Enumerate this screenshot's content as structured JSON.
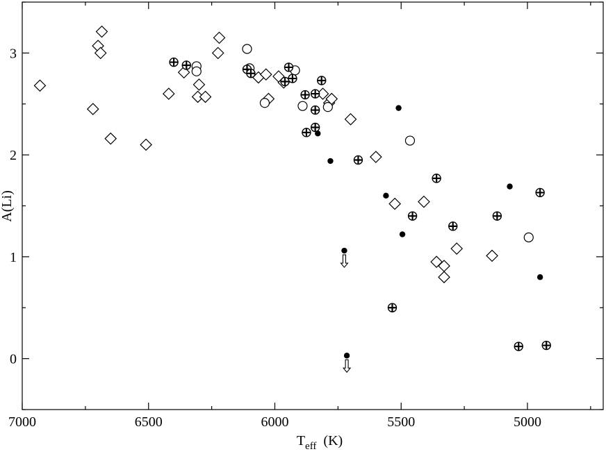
{
  "chart_data": {
    "type": "scatter",
    "title": "",
    "xlabel": "T",
    "xlabel_sub": "eff",
    "xlabel_units": "(K)",
    "ylabel": "A(Li)",
    "xlim": [
      7000,
      4700
    ],
    "ylim": [
      -0.5,
      3.5
    ],
    "x_reversed": true,
    "grid": false,
    "legend": "none",
    "x_ticks": [
      7000,
      6500,
      6000,
      5500,
      5000
    ],
    "y_ticks": [
      0,
      1,
      2,
      3
    ],
    "colors": {
      "marker": "#000000",
      "fill_open": "#ffffff"
    },
    "series": [
      {
        "marker": "diamond-open",
        "points": [
          [
            6930,
            2.68
          ],
          [
            6720,
            2.45
          ],
          [
            6700,
            3.07
          ],
          [
            6690,
            3.0
          ],
          [
            6685,
            3.21
          ],
          [
            6650,
            2.16
          ],
          [
            6510,
            2.1
          ],
          [
            6420,
            2.6
          ],
          [
            6360,
            2.81
          ],
          [
            6300,
            2.69
          ],
          [
            6305,
            2.57
          ],
          [
            6275,
            2.57
          ],
          [
            6225,
            3.0
          ],
          [
            6220,
            3.15
          ],
          [
            6065,
            2.76
          ],
          [
            6035,
            2.79
          ],
          [
            6025,
            2.55
          ],
          [
            5985,
            2.77
          ],
          [
            5965,
            2.71
          ],
          [
            5810,
            2.6
          ],
          [
            5785,
            2.51
          ],
          [
            5775,
            2.55
          ],
          [
            5700,
            2.35
          ],
          [
            5600,
            1.98
          ],
          [
            5525,
            1.52
          ],
          [
            5410,
            1.54
          ],
          [
            5360,
            0.95
          ],
          [
            5330,
            0.91
          ],
          [
            5330,
            0.8
          ],
          [
            5280,
            1.08
          ],
          [
            5140,
            1.01
          ]
        ]
      },
      {
        "marker": "circle-open",
        "points": [
          [
            6110,
            3.04
          ],
          [
            6310,
            2.87
          ],
          [
            6310,
            2.82
          ],
          [
            6100,
            2.85
          ],
          [
            6040,
            2.51
          ],
          [
            5920,
            2.83
          ],
          [
            5890,
            2.48
          ],
          [
            5790,
            2.47
          ],
          [
            5465,
            2.14
          ],
          [
            4995,
            1.19
          ]
        ]
      },
      {
        "marker": "circle-plus",
        "points": [
          [
            6400,
            2.91
          ],
          [
            6350,
            2.88
          ],
          [
            6110,
            2.84
          ],
          [
            6095,
            2.8
          ],
          [
            5960,
            2.72
          ],
          [
            5945,
            2.86
          ],
          [
            5930,
            2.75
          ],
          [
            5815,
            2.73
          ],
          [
            5880,
            2.59
          ],
          [
            5840,
            2.6
          ],
          [
            5840,
            2.44
          ],
          [
            5840,
            2.27
          ],
          [
            5875,
            2.22
          ],
          [
            5670,
            1.95
          ],
          [
            5360,
            1.77
          ],
          [
            5455,
            1.4
          ],
          [
            5295,
            1.3
          ],
          [
            5120,
            1.4
          ],
          [
            4950,
            1.63
          ],
          [
            5535,
            0.5
          ],
          [
            5035,
            0.12
          ],
          [
            4925,
            0.13
          ]
        ]
      },
      {
        "marker": "dot-filled",
        "points": [
          [
            5830,
            2.21
          ],
          [
            5780,
            1.94
          ],
          [
            5510,
            2.46
          ],
          [
            5560,
            1.6
          ],
          [
            5495,
            1.22
          ],
          [
            5070,
            1.69
          ],
          [
            4950,
            0.8
          ]
        ]
      },
      {
        "marker": "dot-upper-limit",
        "points": [
          [
            5725,
            1.06
          ],
          [
            5715,
            0.03
          ]
        ]
      }
    ]
  }
}
